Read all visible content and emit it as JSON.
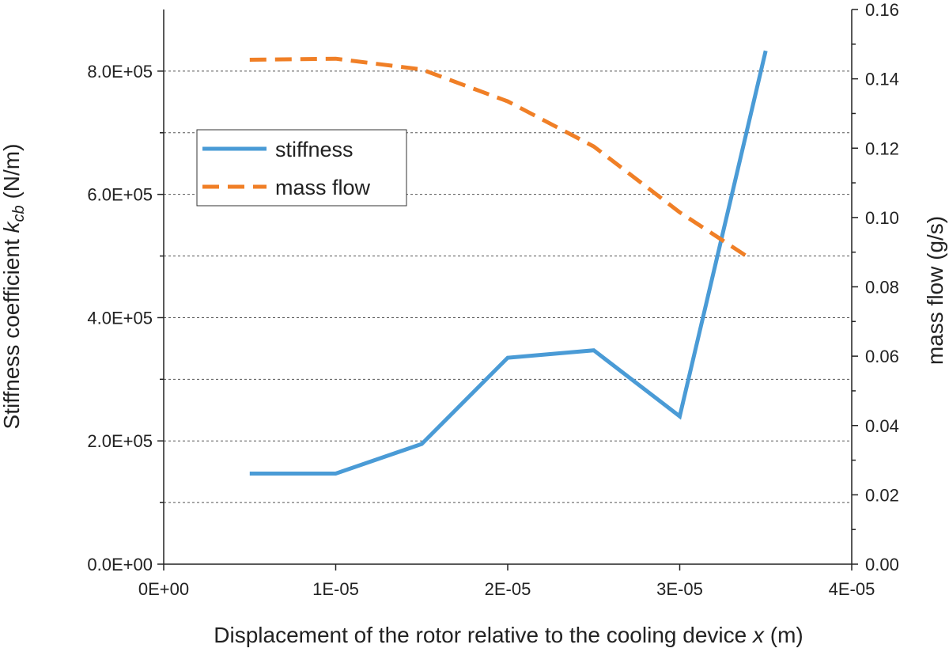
{
  "chart_data": {
    "type": "line",
    "x": [
      5e-06,
      1e-05,
      1.5e-05,
      2e-05,
      2.5e-05,
      3e-05,
      3.5e-05
    ],
    "xlim": [
      0,
      4e-05
    ],
    "x_ticks": [
      0,
      1e-05,
      2e-05,
      3e-05,
      4e-05
    ],
    "x_tick_labels": [
      "0E+00",
      "1E-05",
      "2E-05",
      "3E-05",
      "4E-05"
    ],
    "xlabel_prefix": "Displacement of the rotor relative to the cooling device ",
    "xlabel_var": "x",
    "xlabel_suffix": " (m)",
    "y_left": {
      "label_prefix": "Stiffness coefficient ",
      "label_var": "k",
      "label_sub": "cb",
      "label_suffix": " (N/m)",
      "lim": [
        0,
        900000
      ],
      "ticks": [
        0,
        200000,
        400000,
        600000,
        800000
      ],
      "tick_labels": [
        "0.0E+00",
        "2.0E+05",
        "4.0E+05",
        "6.0E+05",
        "8.0E+05"
      ],
      "minor_ticks": [
        100000,
        300000,
        500000,
        700000
      ]
    },
    "y_right": {
      "label": "mass flow (g/s)",
      "lim": [
        0,
        0.16
      ],
      "ticks": [
        0,
        0.02,
        0.04,
        0.06,
        0.08,
        0.1,
        0.12,
        0.14,
        0.16
      ],
      "tick_labels": [
        "0.00",
        "0.02",
        "0.04",
        "0.06",
        "0.08",
        "0.10",
        "0.12",
        "0.14",
        "0.16"
      ]
    },
    "gridlines": [
      100000,
      200000,
      300000,
      400000,
      500000,
      600000,
      700000,
      800000
    ],
    "series": [
      {
        "name": "stiffness",
        "axis": "left",
        "style": "solid",
        "color": "#4a9bd6",
        "x": [
          5e-06,
          1e-05,
          1.5e-05,
          2e-05,
          2.5e-05,
          3e-05,
          3.5e-05
        ],
        "values": [
          147000,
          147000,
          195000,
          335000,
          347000,
          240000,
          833000
        ]
      },
      {
        "name": "mass flow",
        "axis": "right",
        "style": "dashed",
        "color": "#f07f26",
        "x": [
          5e-06,
          1e-05,
          1.5e-05,
          2e-05,
          2.5e-05,
          3e-05,
          3.4e-05
        ],
        "values": [
          0.1455,
          0.1458,
          0.1427,
          0.1335,
          0.1205,
          0.1015,
          0.0885
        ]
      }
    ],
    "legend": [
      "stiffness",
      "mass flow"
    ],
    "legend_position": "upper-left"
  }
}
